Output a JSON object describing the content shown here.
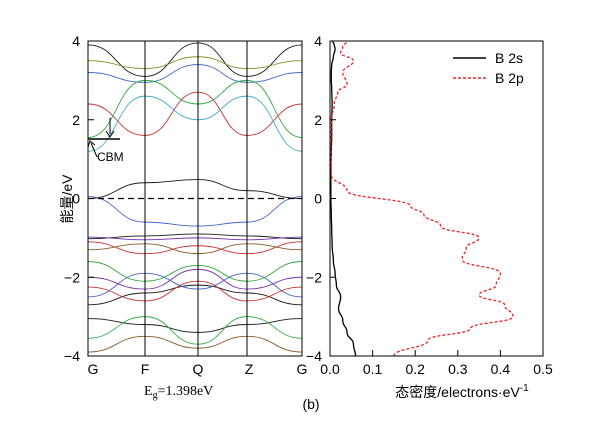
{
  "chart_data": [
    {
      "type": "line",
      "panel": "band-structure",
      "ylabel": "能量/eV",
      "ylim": [
        -4,
        4
      ],
      "yticks": [
        -4,
        -2,
        0,
        2,
        4
      ],
      "kpoints": [
        "G",
        "F",
        "Q",
        "Z",
        "G"
      ],
      "fermi_level": 0,
      "grid": false,
      "annotations": {
        "cbm": "CBM",
        "gap_prefix": "E",
        "gap_sub": "g",
        "gap_value": "=1.398eV"
      },
      "series": [
        {
          "color": "#1a1a1a",
          "values": [
            0.0,
            0.4,
            0.48,
            0.2,
            0.0
          ]
        },
        {
          "color": "#1a1a1a",
          "values": [
            -1.02,
            -0.95,
            -0.9,
            -0.95,
            -1.02
          ]
        },
        {
          "color": "#1a1a1a",
          "values": [
            -2.7,
            -2.4,
            -2.2,
            -2.4,
            -2.7
          ]
        },
        {
          "color": "#1a1a1a",
          "values": [
            -3.05,
            -3.2,
            -3.4,
            -3.2,
            -3.05
          ]
        },
        {
          "color": "#1a1a1a",
          "values": [
            3.9,
            3.1,
            3.95,
            3.1,
            3.9
          ]
        },
        {
          "color": "#4466cc",
          "values": [
            0.05,
            -0.6,
            -0.7,
            -0.6,
            0.05
          ]
        },
        {
          "color": "#4466cc",
          "values": [
            -2.5,
            -1.9,
            -2.3,
            -1.9,
            -2.5
          ]
        },
        {
          "color": "#4466cc",
          "values": [
            3.2,
            2.95,
            3.4,
            2.95,
            3.2
          ]
        },
        {
          "color": "#cc3333",
          "values": [
            -1.1,
            -1.4,
            -1.2,
            -1.4,
            -1.1
          ]
        },
        {
          "color": "#cc3333",
          "values": [
            -2.25,
            -2.6,
            -2.1,
            -2.6,
            -2.25
          ]
        },
        {
          "color": "#cc3333",
          "values": [
            2.4,
            1.6,
            2.7,
            1.6,
            2.4
          ]
        },
        {
          "color": "#33aa44",
          "values": [
            1.55,
            3.0,
            2.4,
            3.0,
            1.55
          ]
        },
        {
          "color": "#33aa44",
          "values": [
            -1.6,
            -2.1,
            -1.7,
            -2.1,
            -1.6
          ]
        },
        {
          "color": "#33aa44",
          "values": [
            -3.55,
            -3.0,
            -3.7,
            -3.0,
            -3.55
          ]
        },
        {
          "color": "#8a5a2a",
          "values": [
            -1.3,
            -1.15,
            -1.4,
            -1.15,
            -1.3
          ]
        },
        {
          "color": "#8a5a2a",
          "values": [
            -3.9,
            -3.5,
            -3.8,
            -3.5,
            -3.9
          ]
        },
        {
          "color": "#7733aa",
          "values": [
            -2.0,
            -2.3,
            -1.8,
            -2.3,
            -2.0
          ]
        },
        {
          "color": "#7733aa",
          "values": [
            -0.98,
            -1.05,
            -1.0,
            -1.05,
            -0.98
          ]
        },
        {
          "color": "#8a8a2a",
          "values": [
            3.5,
            3.3,
            3.6,
            3.3,
            3.5
          ]
        },
        {
          "color": "#44aacc",
          "values": [
            1.2,
            2.6,
            2.0,
            2.6,
            1.2
          ]
        }
      ]
    },
    {
      "type": "line",
      "panel": "dos",
      "label": "(b)",
      "xlabel": "态密度/electrons·eV",
      "xlabel_sup": "-1",
      "xlim": [
        0,
        0.5
      ],
      "ylim": [
        -4,
        4
      ],
      "xticks": [
        "0.0",
        "0.1",
        "0.2",
        "0.3",
        "0.4",
        "0.5"
      ],
      "yticks": [
        -4,
        -2,
        0,
        2,
        4
      ],
      "legend_position": "top-right",
      "grid": false,
      "series": [
        {
          "name": "B 2s",
          "color": "#000000",
          "style": "solid",
          "x": [
            0.06,
            0.055,
            0.04,
            0.03,
            0.02,
            0.025,
            0.015,
            0.012,
            0.008,
            0.005,
            0.004,
            0.003,
            0.002,
            0.002,
            0.002,
            0.003,
            0.004,
            0.004,
            0.005,
            0.004,
            0.003,
            0.003,
            0.004,
            0.008,
            0.012,
            0.01,
            0.006
          ],
          "y": [
            -4.0,
            -3.7,
            -3.4,
            -3.1,
            -2.8,
            -2.5,
            -2.2,
            -1.9,
            -1.6,
            -1.2,
            -0.8,
            -0.4,
            0.0,
            0.4,
            0.8,
            1.2,
            1.6,
            2.0,
            2.4,
            2.8,
            3.0,
            3.2,
            3.4,
            3.6,
            3.8,
            3.9,
            4.0
          ]
        },
        {
          "name": "B 2p",
          "color": "#ee2222",
          "style": "dashed",
          "x": [
            0.15,
            0.23,
            0.33,
            0.43,
            0.41,
            0.35,
            0.39,
            0.4,
            0.31,
            0.32,
            0.35,
            0.26,
            0.22,
            0.19,
            0.04,
            0.003,
            0.002,
            0.003,
            0.01,
            0.018,
            0.04,
            0.03,
            0.055,
            0.025,
            0.03,
            0.04
          ],
          "y": [
            -4.0,
            -3.6,
            -3.3,
            -3.0,
            -2.7,
            -2.45,
            -2.2,
            -1.9,
            -1.55,
            -1.25,
            -1.0,
            -0.7,
            -0.4,
            -0.2,
            0.2,
            0.6,
            1.2,
            2.0,
            2.4,
            2.7,
            2.9,
            3.2,
            3.5,
            3.7,
            3.85,
            4.0
          ]
        }
      ]
    }
  ]
}
